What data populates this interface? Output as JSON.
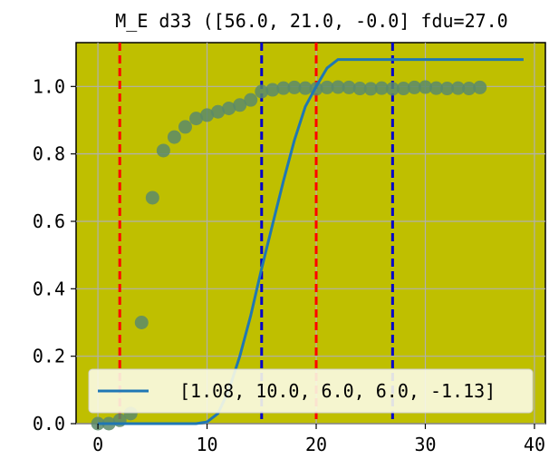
{
  "chart_data": {
    "type": "line",
    "title": "M_E d33 ([56.0, 21.0, -0.0] fdu=27.0",
    "xlabel": "",
    "ylabel": "",
    "xlim": [
      -2,
      41
    ],
    "ylim": [
      0,
      1.13
    ],
    "xticks": [
      0,
      10,
      20,
      30,
      40
    ],
    "yticks": [
      0.0,
      0.2,
      0.4,
      0.6,
      0.8,
      1.0
    ],
    "xtick_labels": [
      "0",
      "10",
      "20",
      "30",
      "40"
    ],
    "ytick_labels": [
      "0.0",
      "0.2",
      "0.4",
      "0.6",
      "0.8",
      "1.0"
    ],
    "grid": true,
    "background_color": "#bfbf00",
    "legend_position": "bottom",
    "scatter": {
      "color": "#5a8a6a",
      "x": [
        0,
        1,
        2,
        3,
        4,
        5,
        6,
        7,
        8,
        9,
        10,
        11,
        12,
        13,
        14,
        15,
        16,
        17,
        18,
        19,
        20,
        21,
        22,
        23,
        24,
        25,
        26,
        27,
        28,
        29,
        30,
        31,
        32,
        33,
        34,
        35
      ],
      "y": [
        0.0,
        0.0,
        0.01,
        0.03,
        0.3,
        0.67,
        0.81,
        0.85,
        0.88,
        0.905,
        0.915,
        0.925,
        0.935,
        0.945,
        0.96,
        0.985,
        0.99,
        0.995,
        0.997,
        0.995,
        0.993,
        0.997,
        0.998,
        0.997,
        0.994,
        0.993,
        0.995,
        0.993,
        0.994,
        0.997,
        0.998,
        0.995,
        0.994,
        0.995,
        0.994,
        0.997
      ]
    },
    "series": [
      {
        "name": "[1.08, 10.0, 6.0, 6.0, -1.13]",
        "color": "#1f77b4",
        "x": [
          0,
          2,
          4,
          6,
          8,
          9,
          10,
          11,
          12,
          13,
          14,
          15,
          16,
          17,
          18,
          19,
          20,
          21,
          22,
          24,
          26,
          28,
          30,
          32,
          34,
          36,
          38,
          39
        ],
        "y": [
          0,
          0,
          0,
          0,
          0,
          0,
          0.005,
          0.03,
          0.1,
          0.2,
          0.32,
          0.46,
          0.59,
          0.72,
          0.84,
          0.94,
          1.0,
          1.055,
          1.08,
          1.08,
          1.08,
          1.08,
          1.08,
          1.08,
          1.08,
          1.08,
          1.08,
          1.08
        ]
      }
    ],
    "vlines": [
      {
        "x": 2,
        "color": "#ff0000"
      },
      {
        "x": 20,
        "color": "#ff0000"
      },
      {
        "x": 15,
        "color": "#0000cc"
      },
      {
        "x": 27,
        "color": "#0000cc"
      }
    ]
  }
}
